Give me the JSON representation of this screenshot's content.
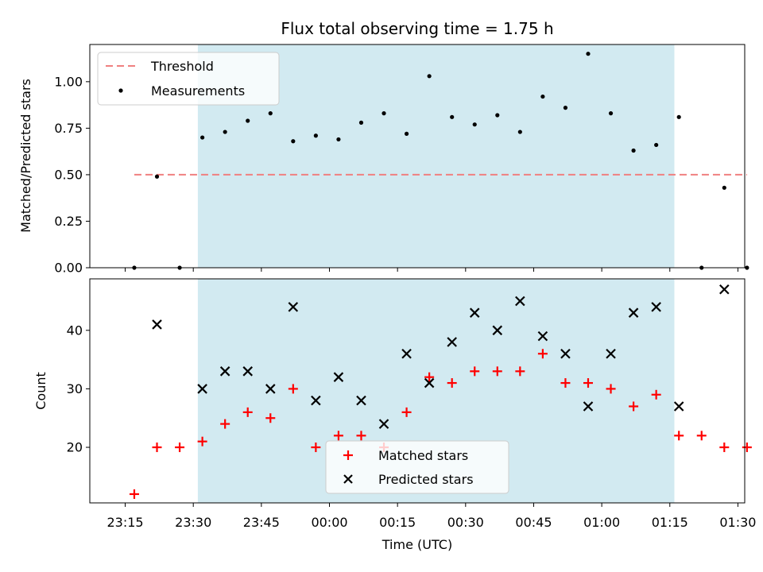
{
  "chart_data": [
    {
      "type": "scatter",
      "title": "Flux total observing time = 1.75 h",
      "ylabel": "Matched/Predicted stars",
      "xlabel": "",
      "ylim": [
        0,
        1.2
      ],
      "yticks": [
        "0.00",
        "0.25",
        "0.50",
        "0.75",
        "1.00"
      ],
      "grid": false,
      "legend_position": "upper-left",
      "shaded_span": {
        "from": "23:31",
        "to": "01:16",
        "color": "#add8e6"
      },
      "threshold": {
        "name": "Threshold",
        "value": 0.5,
        "from": "23:17",
        "to": "01:32",
        "color": "#f08080"
      },
      "series": [
        {
          "name": "Measurements",
          "marker": "dot",
          "color": "#000000",
          "x": [
            "23:17",
            "23:22",
            "23:27",
            "23:32",
            "23:37",
            "23:42",
            "23:47",
            "23:52",
            "23:57",
            "00:02",
            "00:07",
            "00:12",
            "00:17",
            "00:22",
            "00:27",
            "00:32",
            "00:37",
            "00:42",
            "00:47",
            "00:52",
            "00:57",
            "01:02",
            "01:07",
            "01:12",
            "01:17",
            "01:22",
            "01:27",
            "01:32"
          ],
          "values": [
            0.0,
            0.49,
            0.0,
            0.7,
            0.73,
            0.79,
            0.83,
            0.68,
            0.71,
            0.69,
            0.78,
            0.83,
            0.72,
            1.03,
            0.81,
            0.77,
            0.82,
            0.73,
            0.92,
            0.86,
            1.15,
            0.83,
            0.63,
            0.66,
            0.81,
            0.0,
            0.43,
            0.0
          ]
        }
      ]
    },
    {
      "type": "scatter",
      "title": "",
      "ylabel": "Count",
      "xlabel": "Time (UTC)",
      "ylim": [
        10.5,
        48.8
      ],
      "yticks": [
        "20",
        "30",
        "40"
      ],
      "xticks": [
        "23:15",
        "23:30",
        "23:45",
        "00:00",
        "00:15",
        "00:30",
        "00:45",
        "01:00",
        "01:15",
        "01:30"
      ],
      "grid": false,
      "legend_position": "lower-center",
      "shaded_span": {
        "from": "23:31",
        "to": "01:16",
        "color": "#add8e6"
      },
      "series": [
        {
          "name": "Matched stars",
          "marker": "plus",
          "color": "#ff0000",
          "x": [
            "23:17",
            "23:22",
            "23:27",
            "23:32",
            "23:37",
            "23:42",
            "23:47",
            "23:52",
            "23:57",
            "00:02",
            "00:07",
            "00:12",
            "00:17",
            "00:22",
            "00:27",
            "00:32",
            "00:37",
            "00:42",
            "00:47",
            "00:52",
            "00:57",
            "01:02",
            "01:07",
            "01:12",
            "01:17",
            "01:22",
            "01:27",
            "01:32"
          ],
          "values": [
            12,
            20,
            20,
            21,
            24,
            26,
            25,
            30,
            20,
            22,
            22,
            20,
            26,
            32,
            31,
            33,
            33,
            33,
            36,
            31,
            31,
            30,
            27,
            29,
            22,
            22,
            20,
            20
          ]
        },
        {
          "name": "Predicted stars",
          "marker": "x",
          "color": "#000000",
          "x": [
            "23:22",
            "23:32",
            "23:37",
            "23:42",
            "23:47",
            "23:52",
            "23:57",
            "00:02",
            "00:07",
            "00:12",
            "00:17",
            "00:22",
            "00:27",
            "00:32",
            "00:37",
            "00:42",
            "00:47",
            "00:52",
            "00:57",
            "01:02",
            "01:07",
            "01:12",
            "01:17",
            "01:27"
          ],
          "values": [
            41,
            30,
            33,
            33,
            30,
            44,
            28,
            32,
            28,
            24,
            36,
            31,
            38,
            43,
            40,
            45,
            39,
            36,
            27,
            36,
            43,
            44,
            27,
            47
          ]
        }
      ]
    }
  ]
}
